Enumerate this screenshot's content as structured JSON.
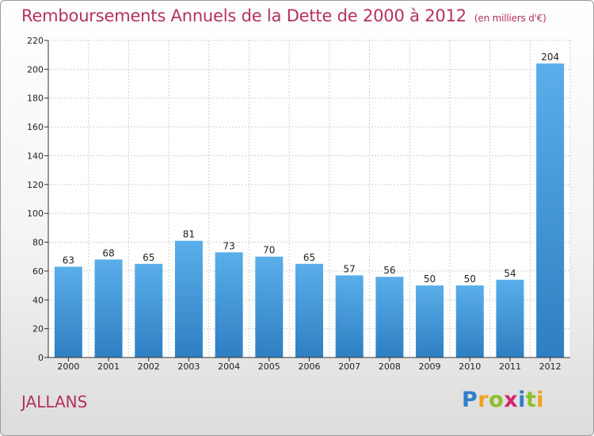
{
  "chart_data": {
    "type": "bar",
    "title": "Remboursements Annuels de la Dette de 2000 à 2012",
    "subtitle": "(en milliers d'€)",
    "categories": [
      "2000",
      "2001",
      "2002",
      "2003",
      "2004",
      "2005",
      "2006",
      "2007",
      "2008",
      "2009",
      "2010",
      "2011",
      "2012"
    ],
    "values": [
      63,
      68,
      65,
      81,
      73,
      70,
      65,
      57,
      56,
      50,
      50,
      54,
      204
    ],
    "ylim": [
      0,
      220
    ],
    "yticks": [
      0,
      20,
      40,
      60,
      80,
      100,
      120,
      140,
      160,
      180,
      200,
      220
    ],
    "grid": true,
    "bar_color": "#4a9be0"
  },
  "commune": "JALLANS",
  "logo": {
    "letters": [
      "P",
      "r",
      "o",
      "x",
      "i",
      "t",
      "i"
    ],
    "colors": [
      "#2f7fc7",
      "#f0a21c",
      "#8cbf26",
      "#d4266d",
      "#2f7fc7",
      "#8cbf26",
      "#f0a21c"
    ]
  }
}
